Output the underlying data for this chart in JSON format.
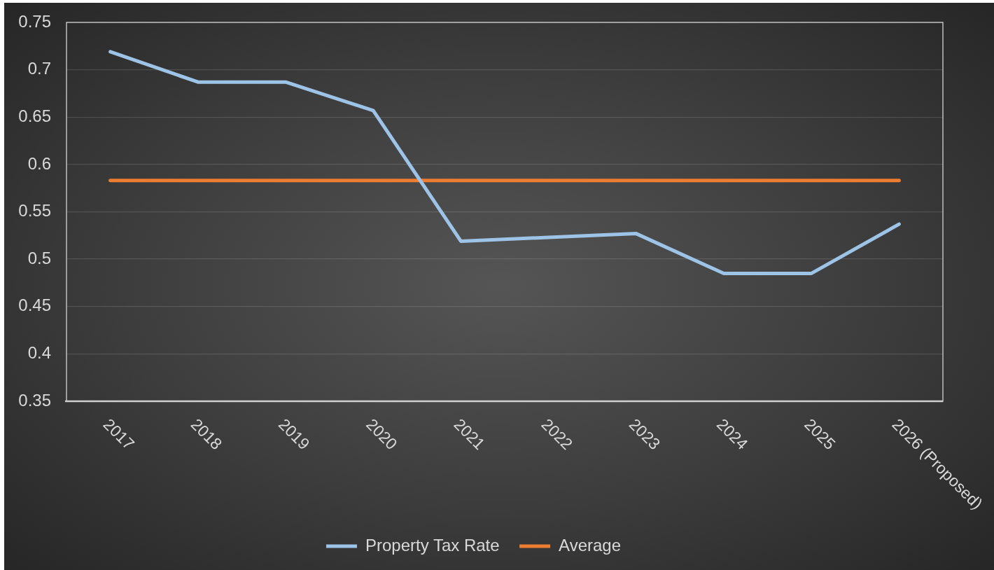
{
  "chart_data": {
    "type": "line",
    "categories": [
      "2017",
      "2018",
      "2019",
      "2020",
      "2021",
      "2022",
      "2023",
      "2024",
      "2025",
      "2026 (Proposed)"
    ],
    "series": [
      {
        "name": "Property Tax Rate",
        "color": "#9dc3e6",
        "values": [
          0.719,
          0.687,
          0.687,
          0.657,
          0.519,
          0.523,
          0.527,
          0.485,
          0.485,
          0.537
        ]
      },
      {
        "name": "Average",
        "color": "#ed7d31",
        "values": [
          0.583,
          0.583,
          0.583,
          0.583,
          0.583,
          0.583,
          0.583,
          0.583,
          0.583,
          0.583
        ]
      }
    ],
    "ylim": [
      0.35,
      0.75
    ],
    "yticks": [
      0.35,
      0.4,
      0.45,
      0.5,
      0.55,
      0.6,
      0.65,
      0.7,
      0.75
    ],
    "grid": "y",
    "legend": "bottom",
    "marker": "none"
  }
}
